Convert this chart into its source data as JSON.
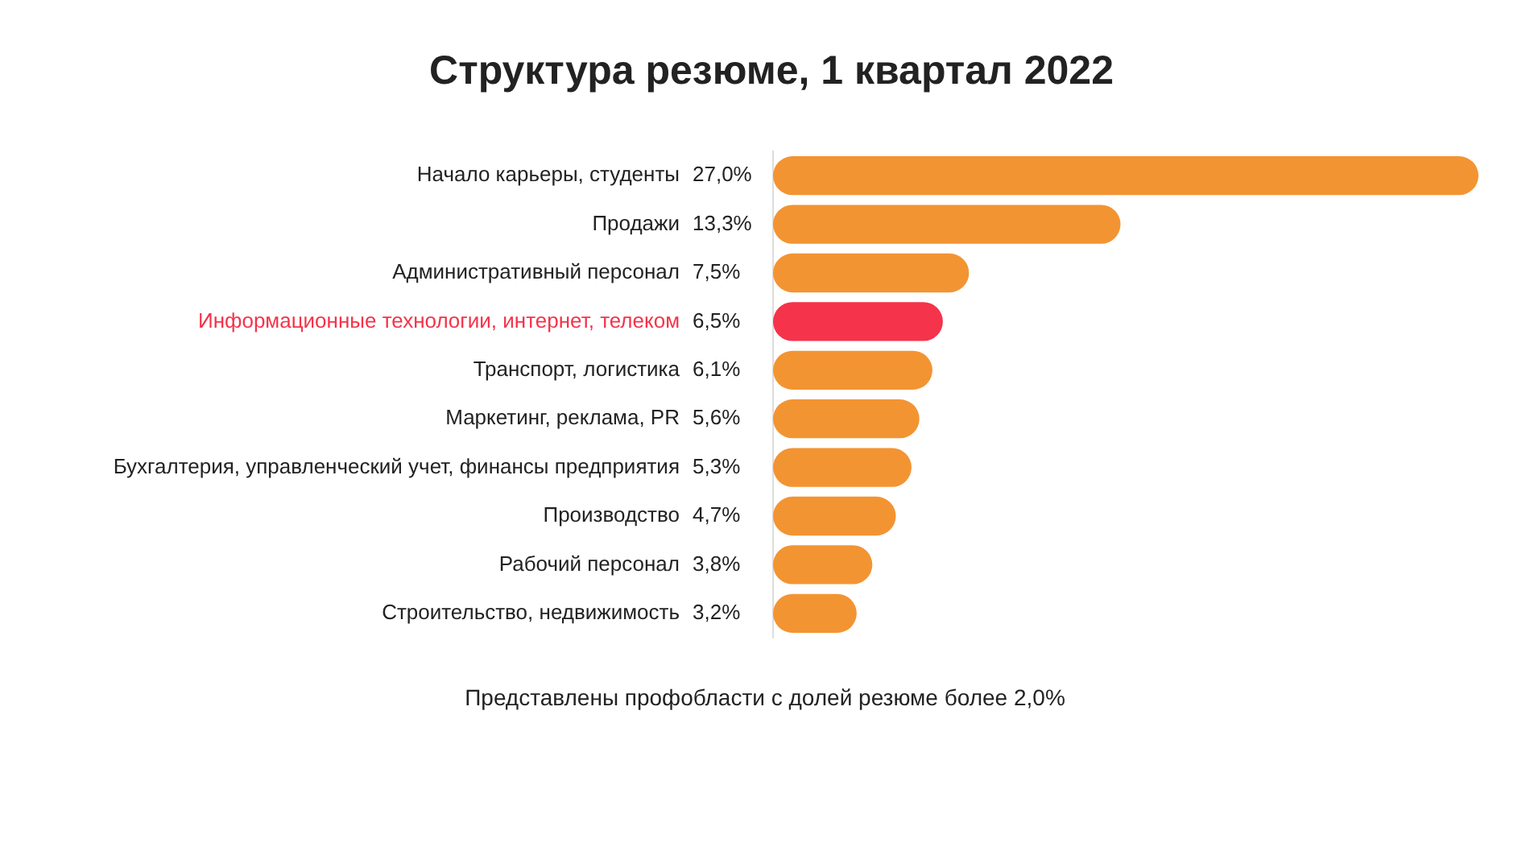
{
  "chart_data": {
    "type": "bar",
    "orientation": "horizontal",
    "title": "Структура резюме, 1 квартал 2022",
    "categories": [
      "Начало карьеры, студенты",
      "Продажи",
      "Административный персонал",
      "Информационные технологии, интернет, телеком",
      "Транспорт, логистика",
      "Маркетинг, реклама, PR",
      "Бухгалтерия, управленческий учет, финансы предприятия",
      "Производство",
      "Рабочий персонал",
      "Строительство, недвижимость"
    ],
    "values": [
      27.0,
      13.3,
      7.5,
      6.5,
      6.1,
      5.6,
      5.3,
      4.7,
      3.8,
      3.2
    ],
    "value_labels": [
      "27,0%",
      "13,3%",
      "7,5%",
      "6,5%",
      "6,1%",
      "5,6%",
      "5,3%",
      "4,7%",
      "3,8%",
      "3,2%"
    ],
    "colors": [
      "#f39432",
      "#f39432",
      "#f39432",
      "#f5334a",
      "#f39432",
      "#f39432",
      "#f39432",
      "#f39432",
      "#f39432",
      "#f39432"
    ],
    "annotations": [
      "Представлены профобласти с долей резюме более 2,0%"
    ],
    "grid": false,
    "legend": false
  }
}
